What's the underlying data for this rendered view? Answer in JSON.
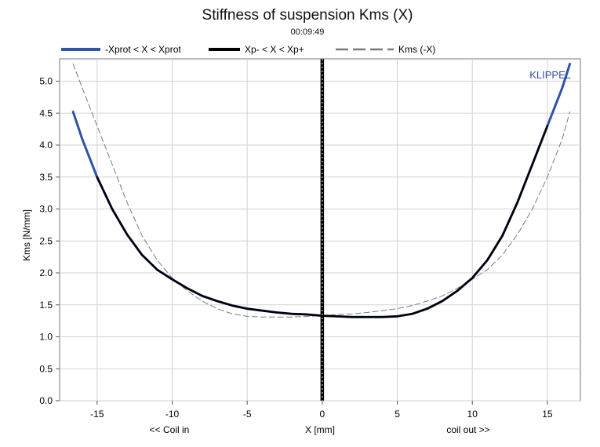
{
  "chart_data": {
    "type": "line",
    "title": "Stiffness of suspension Kms (X)",
    "subtitle": "00:09:49",
    "xlabel": "X [mm]",
    "xlabel_left": "<< Coil in",
    "xlabel_right": "coil out >>",
    "ylabel": "Kms [N/mm]",
    "brand": "KLIPPEL",
    "xlim": [
      -17.5,
      17.2
    ],
    "ylim": [
      0,
      5.35
    ],
    "x_ticks": [
      -15,
      -10,
      -5,
      0,
      5,
      10,
      15
    ],
    "y_ticks": [
      0.0,
      0.5,
      1.0,
      1.5,
      2.0,
      2.5,
      3.0,
      3.5,
      4.0,
      4.5,
      5.0
    ],
    "x_tick_labels": [
      "-15",
      "-10",
      "-5",
      "0",
      "5",
      "10",
      "15"
    ],
    "y_tick_labels": [
      "0.0",
      "0.5",
      "1.0",
      "1.5",
      "2.0",
      "2.5",
      "3.0",
      "3.5",
      "4.0",
      "4.5",
      "5.0"
    ],
    "grid": true,
    "legend_position": "top",
    "series": [
      {
        "name": "-Xprot < X < Xprot",
        "color": "#2f53a8",
        "style": "solid",
        "x": [
          -16.6,
          -16.0,
          -15.0,
          -14.0,
          -13.0,
          -12.0,
          -11.0,
          -10.0,
          -9.0,
          -8.0,
          -7.0,
          -6.0,
          -5.0,
          -4.0,
          -3.0,
          -2.0,
          -1.0,
          0.0,
          1.0,
          2.0,
          3.0,
          4.0,
          5.0,
          6.0,
          7.0,
          8.0,
          9.0,
          10.0,
          11.0,
          12.0,
          13.0,
          14.0,
          15.0,
          16.0,
          16.5
        ],
        "y": [
          4.52,
          4.1,
          3.5,
          3.0,
          2.6,
          2.28,
          2.05,
          1.9,
          1.76,
          1.64,
          1.56,
          1.49,
          1.44,
          1.41,
          1.38,
          1.36,
          1.35,
          1.33,
          1.32,
          1.31,
          1.31,
          1.31,
          1.32,
          1.36,
          1.44,
          1.56,
          1.72,
          1.92,
          2.2,
          2.58,
          3.1,
          3.7,
          4.3,
          4.9,
          5.27
        ]
      },
      {
        "name": "Xp- < X < Xp+",
        "color": "#000000",
        "style": "solid",
        "x": [
          -15.0,
          -14.0,
          -13.0,
          -12.0,
          -11.0,
          -10.0,
          -9.0,
          -8.0,
          -7.0,
          -6.0,
          -5.0,
          -4.0,
          -3.0,
          -2.0,
          -1.0,
          0.0,
          1.0,
          2.0,
          3.0,
          4.0,
          5.0,
          6.0,
          7.0,
          8.0,
          9.0,
          10.0,
          11.0,
          12.0,
          13.0,
          14.0,
          15.0
        ],
        "y": [
          3.5,
          3.0,
          2.6,
          2.28,
          2.05,
          1.9,
          1.76,
          1.64,
          1.56,
          1.49,
          1.44,
          1.41,
          1.38,
          1.36,
          1.35,
          1.33,
          1.32,
          1.31,
          1.31,
          1.31,
          1.32,
          1.36,
          1.44,
          1.56,
          1.72,
          1.92,
          2.2,
          2.58,
          3.1,
          3.7,
          4.3
        ]
      },
      {
        "name": "Kms (-X)",
        "color": "#7a7a7a",
        "style": "dashed",
        "x": [
          -16.6,
          -16.0,
          -15.0,
          -14.0,
          -13.0,
          -12.0,
          -11.0,
          -10.0,
          -9.0,
          -8.0,
          -7.0,
          -6.0,
          -5.0,
          -4.0,
          -3.0,
          -2.0,
          -1.0,
          0.0,
          1.0,
          2.0,
          3.0,
          4.0,
          5.0,
          6.0,
          7.0,
          8.0,
          9.0,
          10.0,
          11.0,
          12.0,
          13.0,
          14.0,
          15.0,
          16.0,
          16.5
        ],
        "y": [
          5.27,
          4.9,
          4.3,
          3.7,
          3.1,
          2.58,
          2.2,
          1.92,
          1.72,
          1.56,
          1.44,
          1.36,
          1.32,
          1.31,
          1.31,
          1.31,
          1.32,
          1.33,
          1.35,
          1.36,
          1.38,
          1.41,
          1.44,
          1.49,
          1.56,
          1.64,
          1.76,
          1.9,
          2.05,
          2.28,
          2.6,
          3.0,
          3.5,
          4.1,
          4.52
        ]
      }
    ]
  }
}
